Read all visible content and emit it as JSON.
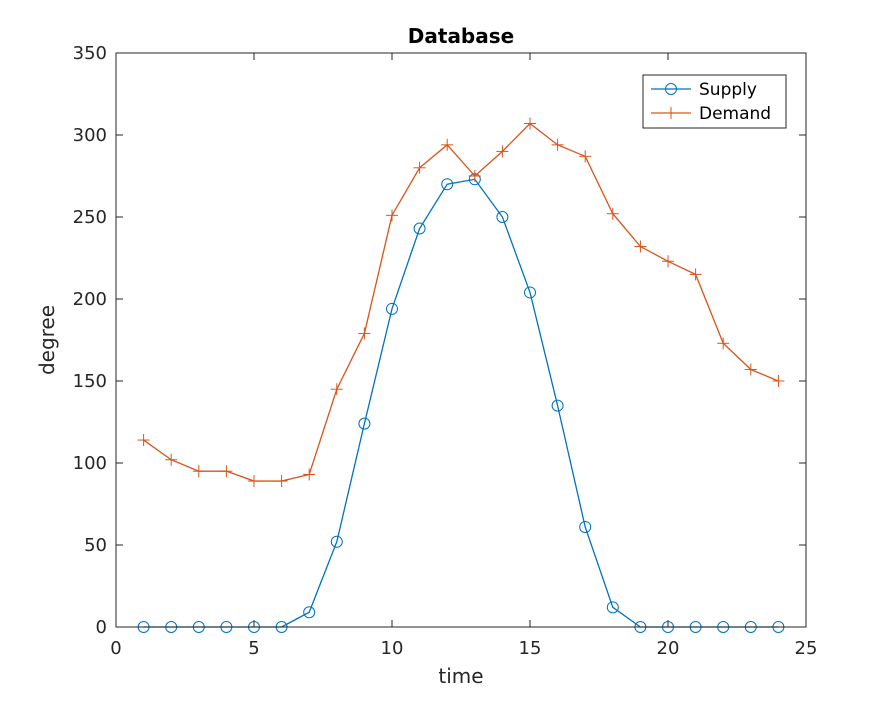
{
  "chart_data": {
    "type": "line",
    "title": "Database",
    "xlabel": "time",
    "ylabel": "degree",
    "xlim": [
      0,
      25
    ],
    "ylim": [
      0,
      350
    ],
    "xticks": [
      0,
      5,
      10,
      15,
      20,
      25
    ],
    "yticks": [
      0,
      50,
      100,
      150,
      200,
      250,
      300,
      350
    ],
    "grid": false,
    "legend_position": "top-right",
    "x": [
      1,
      2,
      3,
      4,
      5,
      6,
      7,
      8,
      9,
      10,
      11,
      12,
      13,
      14,
      15,
      16,
      17,
      18,
      19,
      20,
      21,
      22,
      23,
      24
    ],
    "series": [
      {
        "name": "Supply",
        "color": "#0072BD",
        "marker": "circle",
        "values": [
          0,
          0,
          0,
          0,
          0,
          0,
          9,
          52,
          124,
          194,
          243,
          270,
          273,
          250,
          204,
          135,
          61,
          12,
          0,
          0,
          0,
          0,
          0,
          0
        ]
      },
      {
        "name": "Demand",
        "color": "#D95319",
        "marker": "plus",
        "values": [
          114,
          102,
          95,
          95,
          89,
          89,
          93,
          145,
          179,
          251,
          280,
          294,
          275,
          290,
          307,
          294,
          287,
          252,
          232,
          223,
          215,
          173,
          157,
          150
        ]
      }
    ]
  }
}
